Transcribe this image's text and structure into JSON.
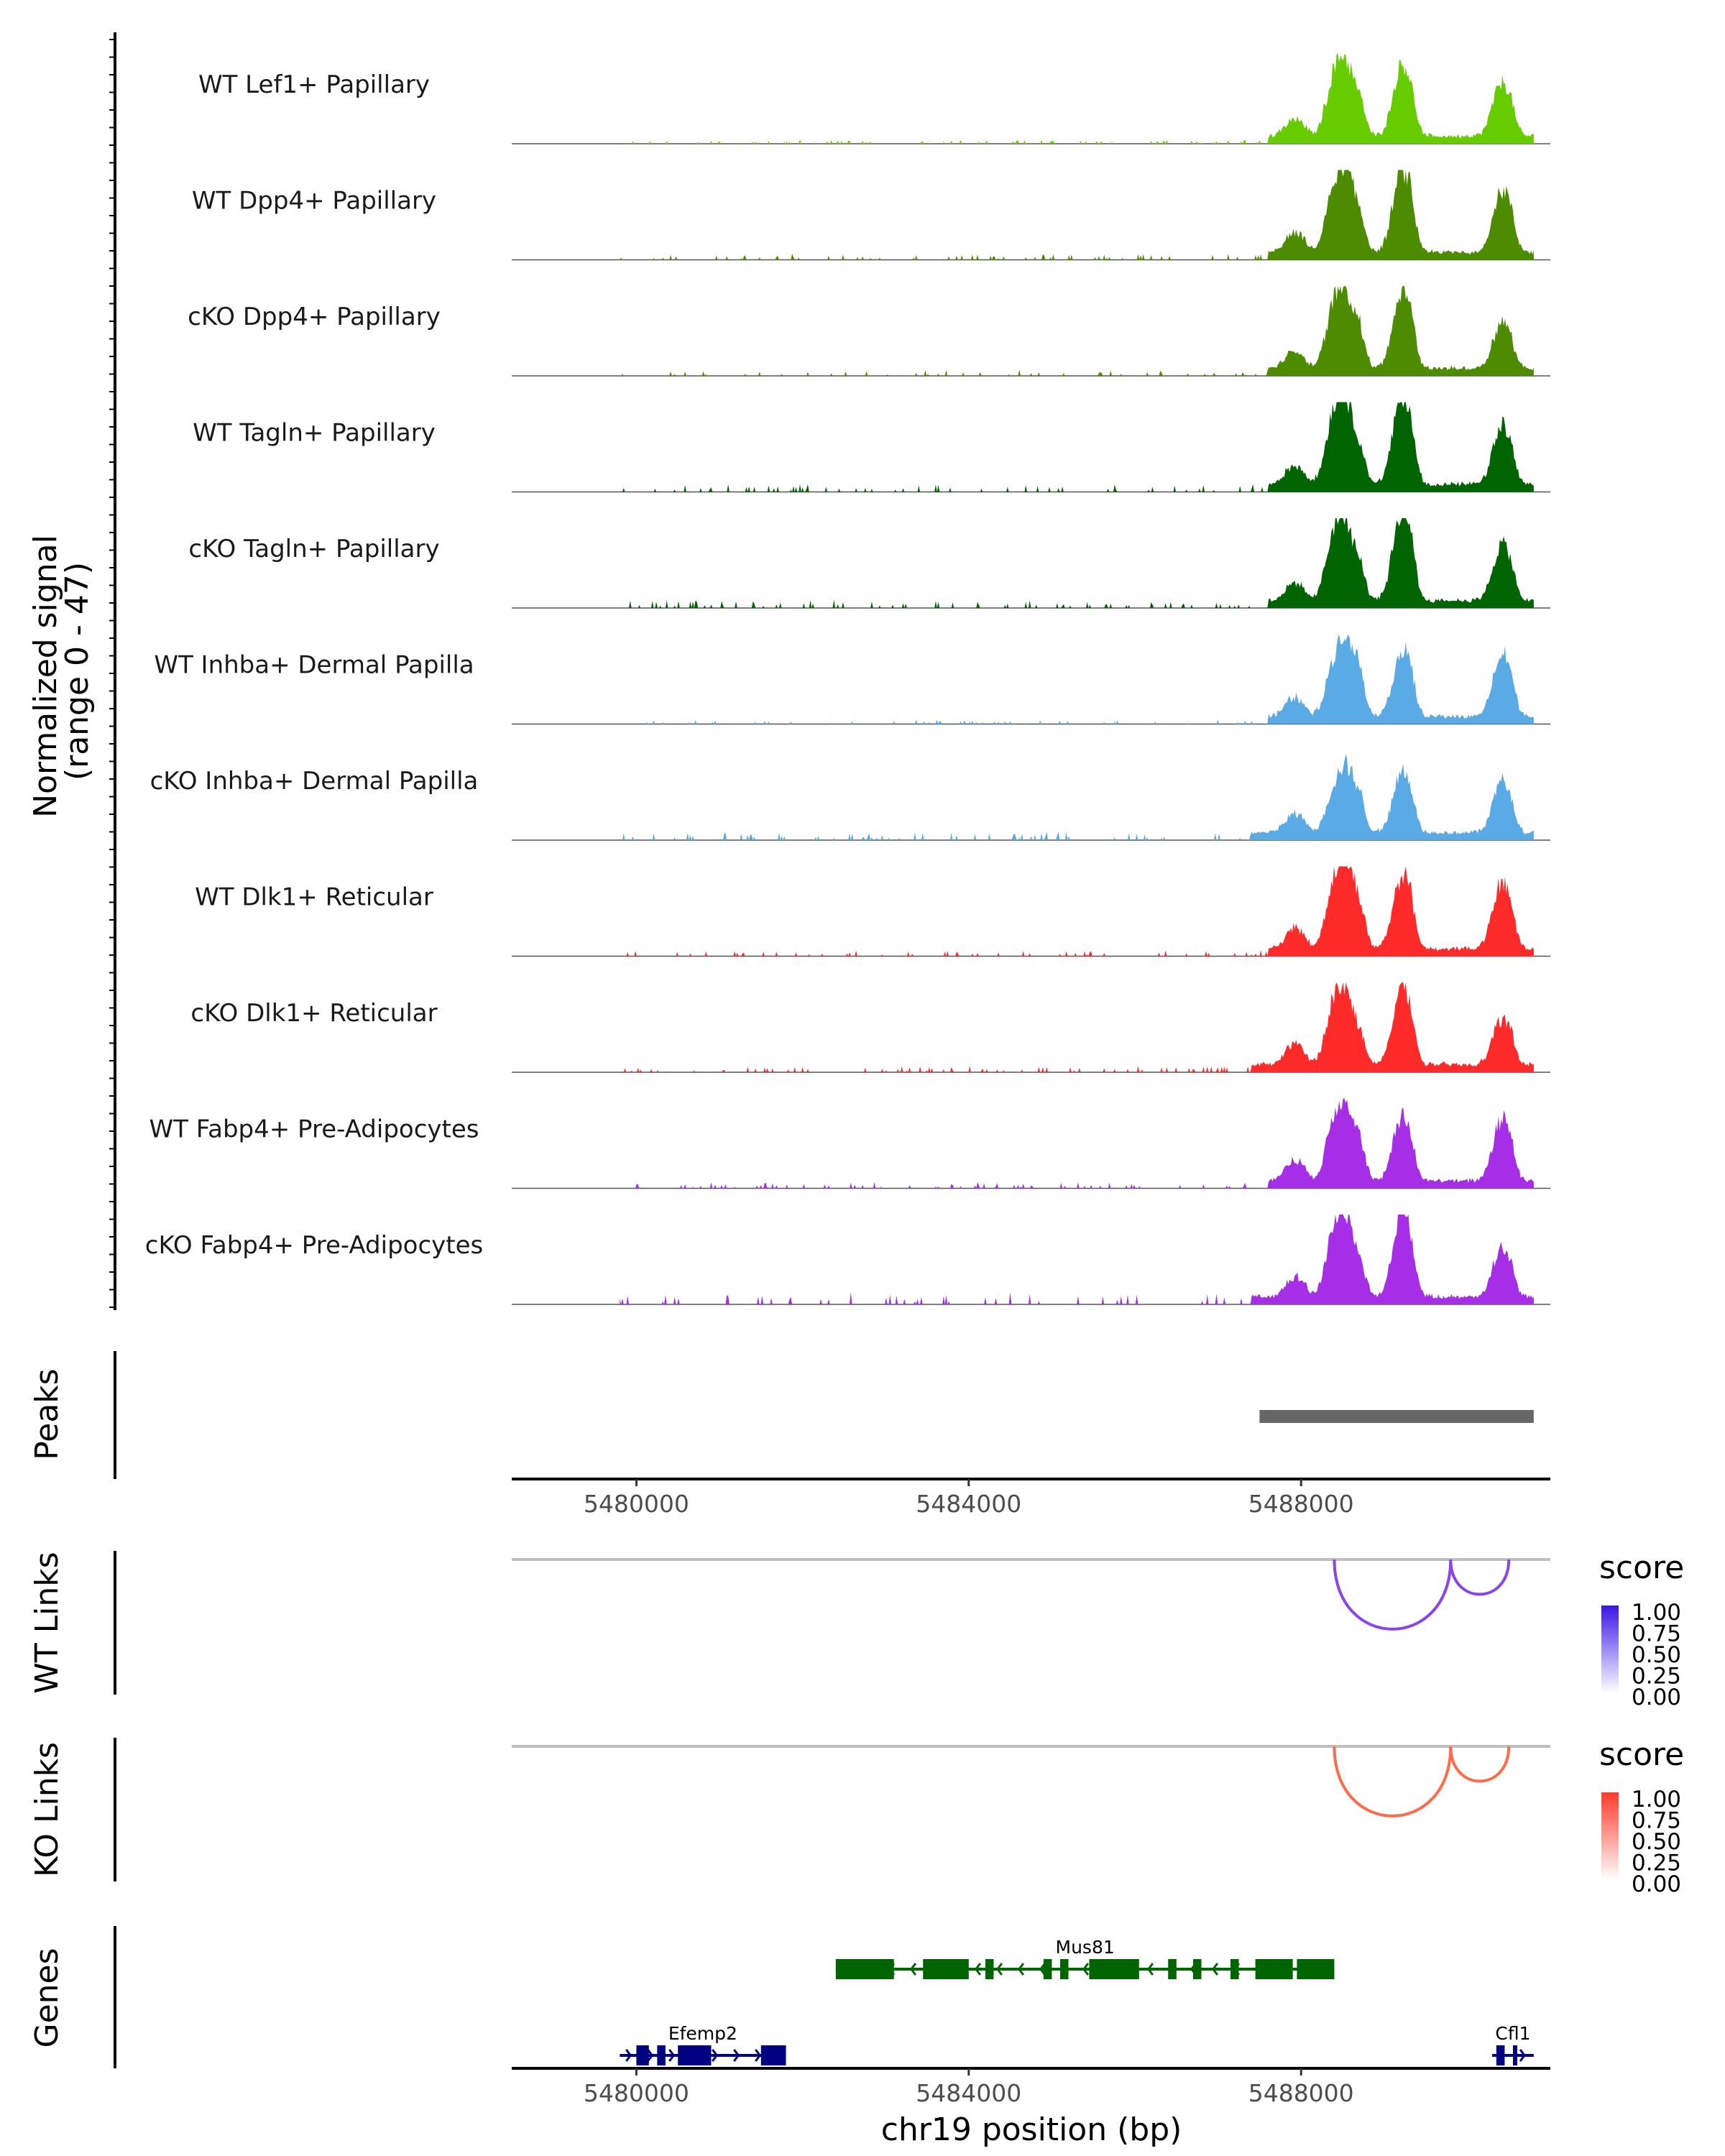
{
  "chart_data": {
    "type": "area",
    "title": "",
    "ylabel": "Normalized signal\n(range 0 - 47)",
    "ylabel_lines": [
      "Normalized signal",
      "(range 0 - 47)"
    ],
    "ylim": [
      0,
      47
    ],
    "xlabel": "chr19 position (bp)",
    "xlim": [
      5478500,
      5491000
    ],
    "xticks": [
      5480000,
      5484000,
      5488000
    ],
    "xtick_labels": [
      "5480000",
      "5484000",
      "5488000"
    ],
    "signal_range": [
      5479800,
      5490800
    ],
    "tracks": [
      {
        "name": "WT Lef1+ Papillary",
        "color": "#66cc00",
        "peaks": [
          [
            5487900,
            8
          ],
          [
            5488400,
            31
          ],
          [
            5488600,
            24
          ],
          [
            5489200,
            35
          ],
          [
            5490400,
            26
          ]
        ],
        "bg": 1.0,
        "base_start": 5487600
      },
      {
        "name": "WT Dpp4+ Papillary",
        "color": "#4d8c00",
        "peaks": [
          [
            5487900,
            9
          ],
          [
            5488400,
            33
          ],
          [
            5488600,
            26
          ],
          [
            5489200,
            40
          ],
          [
            5490400,
            30
          ]
        ],
        "bg": 1.5,
        "base_start": 5487600
      },
      {
        "name": "cKO Dpp4+ Papillary",
        "color": "#4d8c00",
        "peaks": [
          [
            5487900,
            8
          ],
          [
            5488400,
            32
          ],
          [
            5488600,
            26
          ],
          [
            5489200,
            38
          ],
          [
            5490400,
            22
          ]
        ],
        "bg": 1.5,
        "base_start": 5487600
      },
      {
        "name": "WT Tagln+ Papillary",
        "color": "#006400",
        "peaks": [
          [
            5487900,
            9
          ],
          [
            5488400,
            38
          ],
          [
            5488600,
            26
          ],
          [
            5489200,
            44
          ],
          [
            5490400,
            28
          ]
        ],
        "bg": 2.0,
        "base_start": 5487600
      },
      {
        "name": "cKO Tagln+ Papillary",
        "color": "#006400",
        "peaks": [
          [
            5487900,
            8
          ],
          [
            5488400,
            35
          ],
          [
            5488600,
            24
          ],
          [
            5489200,
            45
          ],
          [
            5490400,
            27
          ]
        ],
        "bg": 2.0,
        "base_start": 5487600
      },
      {
        "name": "WT Inhba+ Dermal Papilla",
        "color": "#5aaae6",
        "peaks": [
          [
            5487900,
            9
          ],
          [
            5488400,
            28
          ],
          [
            5488600,
            30
          ],
          [
            5489200,
            32
          ],
          [
            5490400,
            30
          ]
        ],
        "bg": 1.0,
        "base_start": 5487600
      },
      {
        "name": "cKO Inhba+ Dermal Papilla",
        "color": "#5aaae6",
        "peaks": [
          [
            5487900,
            9
          ],
          [
            5488400,
            22
          ],
          [
            5488600,
            24
          ],
          [
            5489200,
            30
          ],
          [
            5490400,
            25
          ]
        ],
        "bg": 2.0,
        "base_start": 5487400
      },
      {
        "name": "WT Dlk1+ Reticular",
        "color": "#ff2a2a",
        "peaks": [
          [
            5487900,
            10
          ],
          [
            5488400,
            34
          ],
          [
            5488600,
            30
          ],
          [
            5489200,
            36
          ],
          [
            5490400,
            32
          ]
        ],
        "bg": 1.5,
        "base_start": 5487600
      },
      {
        "name": "cKO Dlk1+ Reticular",
        "color": "#ff2a2a",
        "peaks": [
          [
            5487900,
            10
          ],
          [
            5488400,
            32
          ],
          [
            5488600,
            22
          ],
          [
            5489200,
            38
          ],
          [
            5490400,
            22
          ]
        ],
        "bg": 1.5,
        "base_start": 5487400
      },
      {
        "name": "WT Fabp4+ Pre-Adipocytes",
        "color": "#a52ee6",
        "peaks": [
          [
            5487900,
            10
          ],
          [
            5488400,
            30
          ],
          [
            5488600,
            28
          ],
          [
            5489200,
            30
          ],
          [
            5490400,
            30
          ]
        ],
        "bg": 1.5,
        "base_start": 5487600
      },
      {
        "name": "cKO Fabp4+ Pre-Adipocytes",
        "color": "#a52ee6",
        "peaks": [
          [
            5487900,
            10
          ],
          [
            5488400,
            34
          ],
          [
            5488600,
            26
          ],
          [
            5489200,
            42
          ],
          [
            5490400,
            24
          ]
        ],
        "bg": 3.0,
        "base_start": 5487400
      }
    ],
    "peaks_track": {
      "label": "Peaks",
      "regions": [
        [
          5487500,
          5490800
        ]
      ],
      "color": "#666666"
    },
    "links_tracks": [
      {
        "label": "WT Links",
        "legend_title": "score",
        "legend_ticks": [
          "1.00",
          "0.75",
          "0.50",
          "0.25",
          "0.00"
        ],
        "color": "#8844ee",
        "gradient": [
          "#ffffff",
          "#3a16e6"
        ],
        "links": [
          [
            5488400,
            5489800
          ],
          [
            5489800,
            5490500
          ]
        ]
      },
      {
        "label": "KO Links",
        "legend_title": "score",
        "legend_ticks": [
          "1.00",
          "0.75",
          "0.50",
          "0.25",
          "0.00"
        ],
        "color": "#ff6a4a",
        "gradient": [
          "#ffffff",
          "#ff3a2a"
        ],
        "links": [
          [
            5488400,
            5489800
          ],
          [
            5489800,
            5490500
          ]
        ]
      }
    ],
    "genes_track": {
      "label": "Genes",
      "genes": [
        {
          "name": "Mus81",
          "start": 5482400,
          "end": 5488400,
          "strand": "-",
          "color": "#006400",
          "row": 0,
          "exons": [
            [
              5482400,
              5483100
            ],
            [
              5483450,
              5484000
            ],
            [
              5484200,
              5484300
            ],
            [
              5484900,
              5485000
            ],
            [
              5485100,
              5485200
            ],
            [
              5485450,
              5486050
            ],
            [
              5486400,
              5486500
            ],
            [
              5486700,
              5486800
            ],
            [
              5487150,
              5487250
            ],
            [
              5487450,
              5487900
            ],
            [
              5487950,
              5488400
            ]
          ]
        },
        {
          "name": "Efemp2",
          "start": 5479800,
          "end": 5481800,
          "strand": "+",
          "color": "#000080",
          "row": 1,
          "exons": [
            [
              5480000,
              5480150
            ],
            [
              5480250,
              5480350
            ],
            [
              5480500,
              5480550
            ],
            [
              5480550,
              5480900
            ],
            [
              5481500,
              5481800
            ]
          ]
        },
        {
          "name": "Cfl1",
          "start": 5490300,
          "end": 5490800,
          "strand": "+",
          "color": "#000080",
          "row": 1,
          "exons": [
            [
              5490350,
              5490450
            ],
            [
              5490550,
              5490600
            ]
          ]
        }
      ]
    }
  }
}
